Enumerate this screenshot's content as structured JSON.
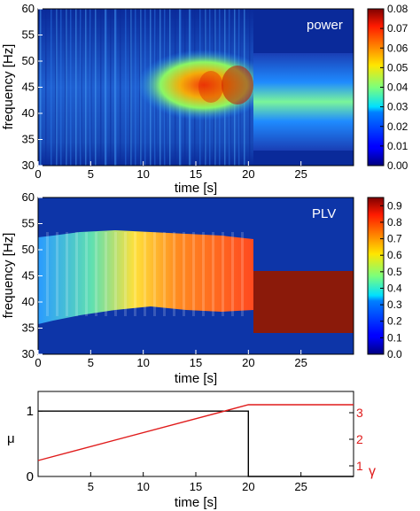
{
  "chart_data": [
    {
      "type": "heatmap",
      "panel_label": "power",
      "xlabel": "time [s]",
      "ylabel": "frequency [Hz]",
      "xlim": [
        0,
        30
      ],
      "ylim": [
        30,
        60
      ],
      "xticks": [
        0,
        5,
        10,
        15,
        20,
        25
      ],
      "yticks": [
        30,
        35,
        40,
        45,
        50,
        55,
        60
      ],
      "colorbar": {
        "min": 0,
        "max": 0.08,
        "ticks": [
          "0.00",
          "0.01",
          "0.02",
          "0.03",
          "0.04",
          "0.05",
          "0.06",
          "0.07",
          "0.08"
        ],
        "colormap": "jet"
      },
      "regions": [
        {
          "t_range": [
            0,
            10
          ],
          "freq_center": 45,
          "description_values": {
            "peak": 0.03
          }
        },
        {
          "t_range": [
            10,
            20
          ],
          "freq_center": 45,
          "description_values": {
            "peak": 0.075
          }
        },
        {
          "t_range": [
            20,
            30
          ],
          "freq_center": 40,
          "description_values": {
            "peak": 0.035
          }
        }
      ]
    },
    {
      "type": "heatmap",
      "panel_label": "PLV",
      "xlabel": "time [s]",
      "ylabel": "frequency [Hz]",
      "xlim": [
        0,
        30
      ],
      "ylim": [
        30,
        60
      ],
      "xticks": [
        0,
        5,
        10,
        15,
        20,
        25
      ],
      "yticks": [
        30,
        35,
        40,
        45,
        50,
        55,
        60
      ],
      "colorbar": {
        "min": 0,
        "max": 0.95,
        "ticks": [
          "0.0",
          "0.1",
          "0.2",
          "0.3",
          "0.4",
          "0.5",
          "0.6",
          "0.7",
          "0.8",
          "0.9"
        ],
        "colormap": "jet"
      },
      "regions": [
        {
          "t_range": [
            0,
            20
          ],
          "freq_range": [
            36,
            53
          ],
          "description_values": {
            "start": 0.3,
            "end": 0.8
          }
        },
        {
          "t_range": [
            20,
            30
          ],
          "freq_range": [
            34,
            46
          ],
          "description_values": {
            "peak": 0.92
          }
        }
      ]
    },
    {
      "type": "line",
      "xlabel": "time [s]",
      "ylabel": "μ",
      "y2label": "γ",
      "xlim": [
        0,
        30
      ],
      "ylim": [
        0,
        1.3
      ],
      "y2lim": [
        0.6,
        3.8
      ],
      "xticks": [
        5,
        10,
        15,
        20,
        25
      ],
      "yticks": [
        0,
        1
      ],
      "y2ticks": [
        1,
        2,
        3
      ],
      "series": [
        {
          "name": "",
          "axis": "left",
          "color": "#000000",
          "x": [
            0,
            20,
            20,
            30
          ],
          "y": [
            1,
            1,
            0,
            0
          ]
        },
        {
          "name": "",
          "axis": "right",
          "color": "#e01b1b",
          "x": [
            0,
            20,
            30
          ],
          "y": [
            1.2,
            3.3,
            3.3
          ]
        }
      ]
    }
  ]
}
